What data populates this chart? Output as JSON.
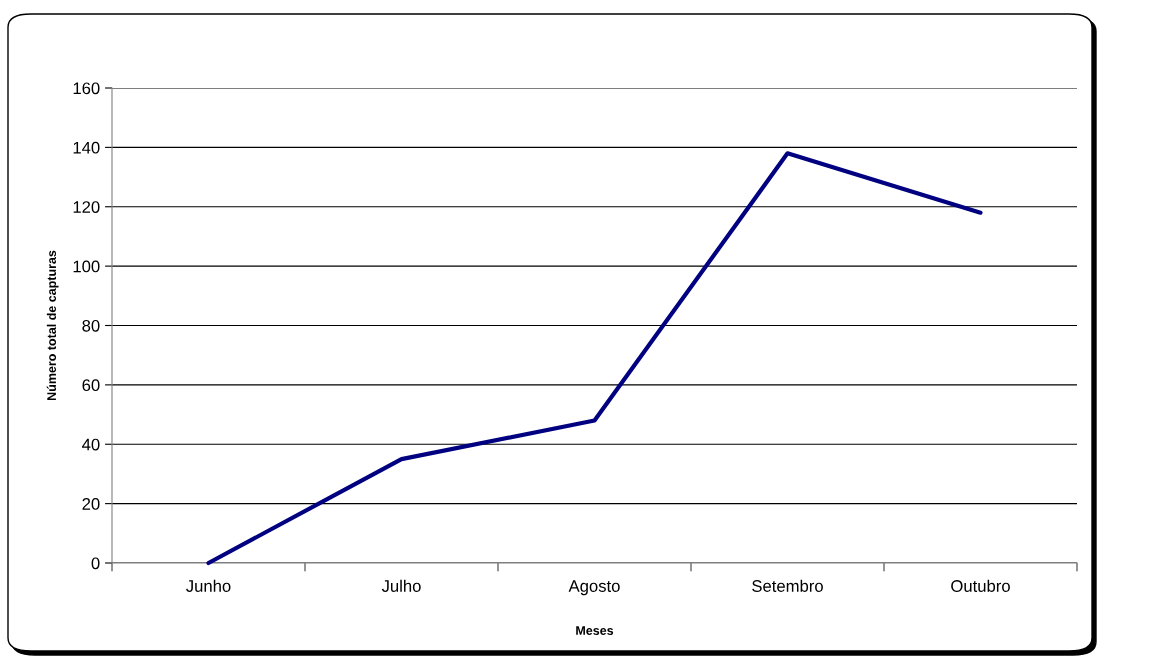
{
  "chart_data": {
    "type": "line",
    "xlabel": "Meses",
    "ylabel": "Número total de capturas",
    "categories": [
      "Junho",
      "Julho",
      "Agosto",
      "Setembro",
      "Outubro"
    ],
    "series": [
      {
        "color": "#000080",
        "values": [
          0,
          35,
          48,
          138,
          118
        ]
      }
    ],
    "ylim": [
      0,
      160
    ],
    "yticks": [
      0,
      20,
      40,
      60,
      80,
      100,
      120,
      140,
      160
    ],
    "grid": "y",
    "legend": false
  }
}
